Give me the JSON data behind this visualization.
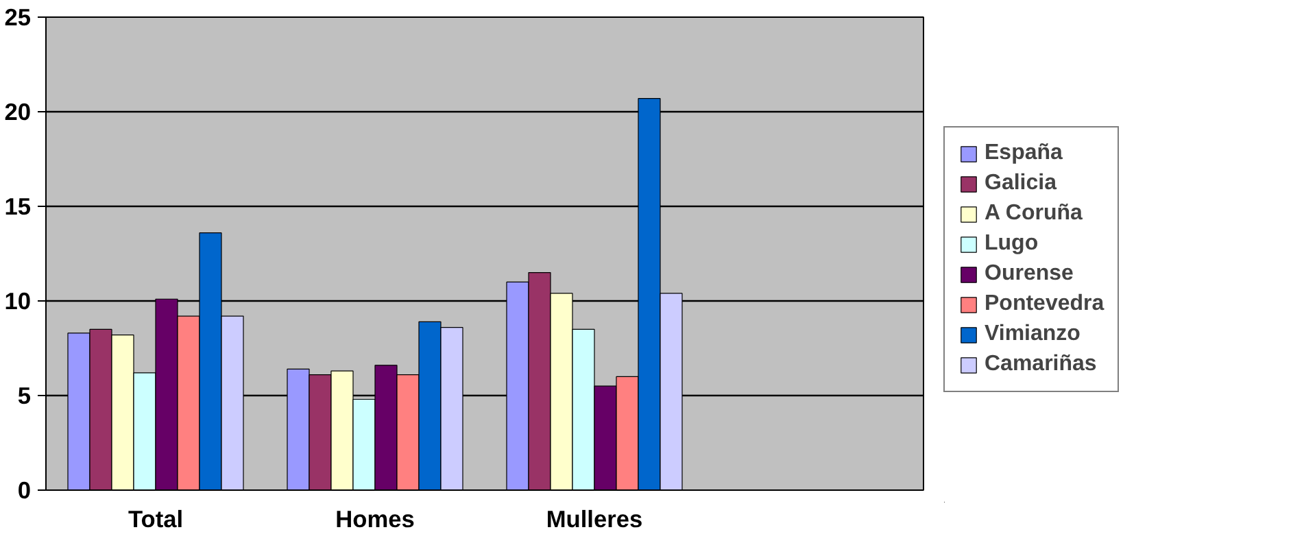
{
  "chart_data": {
    "type": "bar",
    "categories": [
      "Total",
      "Homes",
      "Mulleres",
      null
    ],
    "series": [
      {
        "name": "España",
        "color": "#9999ff",
        "values": [
          8.3,
          6.4,
          11.0,
          null
        ]
      },
      {
        "name": "Galicia",
        "color": "#993366",
        "values": [
          8.5,
          6.1,
          11.5,
          null
        ]
      },
      {
        "name": "A Coruña",
        "color": "#ffffcc",
        "values": [
          8.2,
          6.3,
          10.4,
          null
        ]
      },
      {
        "name": "Lugo",
        "color": "#ccffff",
        "values": [
          6.2,
          4.8,
          8.5,
          null
        ]
      },
      {
        "name": "Ourense",
        "color": "#660066",
        "values": [
          10.1,
          6.6,
          5.5,
          null
        ]
      },
      {
        "name": "Pontevedra",
        "color": "#ff8080",
        "values": [
          9.2,
          6.1,
          6.0,
          null
        ]
      },
      {
        "name": "Vimianzo",
        "color": "#0066cc",
        "values": [
          13.6,
          8.9,
          20.7,
          null
        ]
      },
      {
        "name": "Camariñas",
        "color": "#ccccff",
        "values": [
          9.2,
          8.6,
          10.4,
          null
        ]
      }
    ],
    "ylim": [
      0,
      25
    ],
    "yticks": [
      0,
      5,
      10,
      15,
      20,
      25
    ],
    "grid": "y",
    "legend": "right"
  }
}
